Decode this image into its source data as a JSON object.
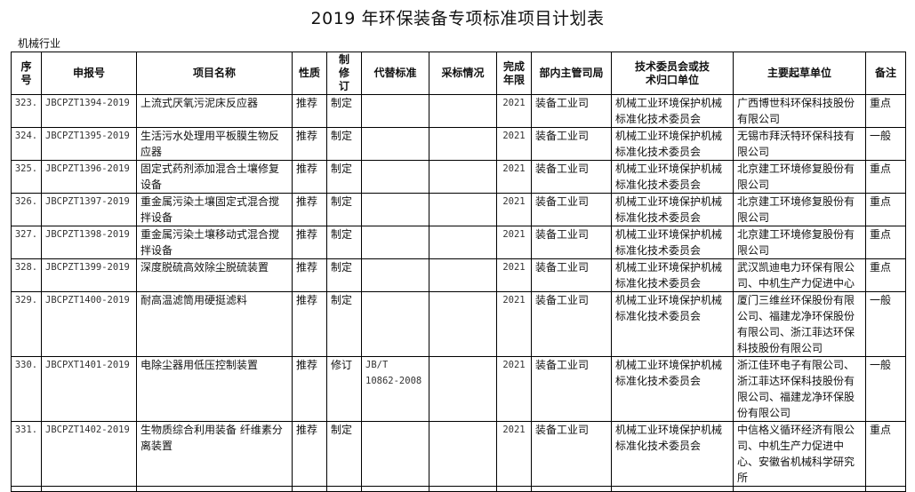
{
  "title": "2019 年环保装备专项标准项目计划表",
  "section": "机械行业",
  "headers": [
    "序号",
    "申报号",
    "项目名称",
    "性质",
    "制修订",
    "代替标准",
    "采标情况",
    "完成年限",
    "部内主管司局",
    "技术委员会或技术归口单位",
    "主要起草单位",
    "备注"
  ],
  "rows": [
    {
      "no": "323.",
      "code": "JBCPZT1394-2019",
      "name": "上流式厌氧污泥床反应器",
      "nature": "推荐",
      "type": "制定",
      "replaces": "",
      "adoption": "",
      "year": "2021",
      "dept": "装备工业司",
      "committee": "机械工业环境保护机械标准化技术委员会",
      "drafter": "广西博世科环保科技股份有限公司",
      "note": "重点"
    },
    {
      "no": "324.",
      "code": "JBCPZT1395-2019",
      "name": "生活污水处理用平板膜生物反应器",
      "nature": "推荐",
      "type": "制定",
      "replaces": "",
      "adoption": "",
      "year": "2021",
      "dept": "装备工业司",
      "committee": "机械工业环境保护机械标准化技术委员会",
      "drafter": "无锡市拜沃特环保科技有限公司",
      "note": "一般"
    },
    {
      "no": "325.",
      "code": "JBCPZT1396-2019",
      "name": "固定式药剂添加混合土壤修复设备",
      "nature": "推荐",
      "type": "制定",
      "replaces": "",
      "adoption": "",
      "year": "2021",
      "dept": "装备工业司",
      "committee": "机械工业环境保护机械标准化技术委员会",
      "drafter": "北京建工环境修复股份有限公司",
      "note": "重点"
    },
    {
      "no": "326.",
      "code": "JBCPZT1397-2019",
      "name": "重金属污染土壤固定式混合搅拌设备",
      "nature": "推荐",
      "type": "制定",
      "replaces": "",
      "adoption": "",
      "year": "2021",
      "dept": "装备工业司",
      "committee": "机械工业环境保护机械标准化技术委员会",
      "drafter": "北京建工环境修复股份有限公司",
      "note": "重点"
    },
    {
      "no": "327.",
      "code": "JBCPZT1398-2019",
      "name": "重金属污染土壤移动式混合搅拌设备",
      "nature": "推荐",
      "type": "制定",
      "replaces": "",
      "adoption": "",
      "year": "2021",
      "dept": "装备工业司",
      "committee": "机械工业环境保护机械标准化技术委员会",
      "drafter": "北京建工环境修复股份有限公司",
      "note": "重点"
    },
    {
      "no": "328.",
      "code": "JBCPZT1399-2019",
      "name": "深度脱硫高效除尘脱硫装置",
      "nature": "推荐",
      "type": "制定",
      "replaces": "",
      "adoption": "",
      "year": "2021",
      "dept": "装备工业司",
      "committee": "机械工业环境保护机械标准化技术委员会",
      "drafter": "武汉凯迪电力环保有限公司、中机生产力促进中心",
      "note": "重点"
    },
    {
      "no": "329.",
      "code": "JBCPZT1400-2019",
      "name": "耐高温滤筒用硬挺滤料",
      "nature": "推荐",
      "type": "制定",
      "replaces": "",
      "adoption": "",
      "year": "2021",
      "dept": "装备工业司",
      "committee": "机械工业环境保护机械标准化技术委员会",
      "drafter": "厦门三维丝环保股份有限公司、福建龙净环保股份有限公司、浙江菲达环保科技股份有限公司",
      "note": "一般"
    },
    {
      "no": "330.",
      "code": "JBCPXT1401-2019",
      "name": "电除尘器用低压控制装置",
      "nature": "推荐",
      "type": "修订",
      "replaces": "JB/T 10862-2008",
      "adoption": "",
      "year": "2021",
      "dept": "装备工业司",
      "committee": "机械工业环境保护机械标准化技术委员会",
      "drafter": "浙江佳环电子有限公司、浙江菲达环保科技股份有限公司、福建龙净环保股份有限公司",
      "note": "一般"
    },
    {
      "no": "331.",
      "code": "JBCPZT1402-2019",
      "name": "生物质综合利用装备 纤维素分离装置",
      "nature": "推荐",
      "type": "制定",
      "replaces": "",
      "adoption": "",
      "year": "2021",
      "dept": "装备工业司",
      "committee": "机械工业环境保护机械标准化技术委员会",
      "drafter": "中信格义循环经济有限公司、中机生产力促进中心、安徽省机械科学研究所",
      "note": "重点"
    }
  ]
}
